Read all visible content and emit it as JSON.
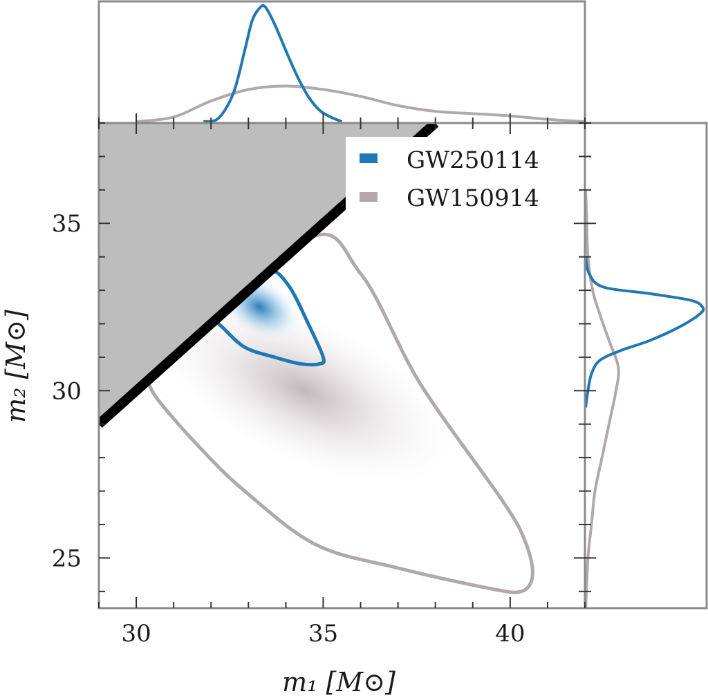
{
  "chart_data": {
    "type": "scatter",
    "subtype": "corner-plot (2D posterior density with marginal histograms)",
    "xlabel": "m₁ [M⊙]",
    "ylabel": "m₂ [M⊙]",
    "xlim": [
      29,
      42
    ],
    "ylim": [
      23.5,
      38
    ],
    "x_ticks": [
      30,
      35,
      40
    ],
    "y_ticks": [
      25,
      30,
      35
    ],
    "grid": false,
    "legend_position": "top-right",
    "excluded_region": {
      "description": "m₂ > m₁ region shaded grey with black boundary line m₂ = m₁",
      "color": "#bdbdbd"
    },
    "series": [
      {
        "name": "GW250114",
        "color": "#1f77b4",
        "contour_points": [
          [
            32.1,
            32.1
          ],
          [
            33.1,
            33.1
          ],
          [
            33.6,
            33.6
          ],
          [
            34.1,
            33.1
          ],
          [
            34.6,
            32.0
          ],
          [
            35.0,
            31.0
          ],
          [
            34.9,
            30.8
          ],
          [
            34.4,
            30.8
          ],
          [
            33.7,
            31.0
          ],
          [
            32.9,
            31.3
          ],
          [
            32.3,
            31.9
          ],
          [
            32.1,
            32.1
          ]
        ],
        "peak": [
          33.3,
          32.5
        ],
        "marginal_m1": [
          [
            31.8,
            0.0
          ],
          [
            32.2,
            0.03
          ],
          [
            32.6,
            0.25
          ],
          [
            32.9,
            0.62
          ],
          [
            33.1,
            0.88
          ],
          [
            33.3,
            0.99
          ],
          [
            33.45,
            1.0
          ],
          [
            33.7,
            0.85
          ],
          [
            34.0,
            0.62
          ],
          [
            34.3,
            0.4
          ],
          [
            34.6,
            0.22
          ],
          [
            34.9,
            0.1
          ],
          [
            35.2,
            0.04
          ],
          [
            35.5,
            0.0
          ]
        ],
        "marginal_m2": [
          [
            29.5,
            0.0
          ],
          [
            30.0,
            0.02
          ],
          [
            30.5,
            0.05
          ],
          [
            30.9,
            0.12
          ],
          [
            31.2,
            0.3
          ],
          [
            31.5,
            0.55
          ],
          [
            31.9,
            0.8
          ],
          [
            32.3,
            0.98
          ],
          [
            32.5,
            1.0
          ],
          [
            32.7,
            0.9
          ],
          [
            32.9,
            0.55
          ],
          [
            33.1,
            0.15
          ],
          [
            33.5,
            0.03
          ],
          [
            34.0,
            0.0
          ]
        ]
      },
      {
        "name": "GW150914",
        "color": "#b0a8ab",
        "contour_points": [
          [
            30.3,
            30.3
          ],
          [
            34.5,
            34.5
          ],
          [
            36.0,
            33.5
          ],
          [
            37.6,
            30.2
          ],
          [
            39.8,
            26.7
          ],
          [
            40.4,
            25.5
          ],
          [
            40.6,
            24.5
          ],
          [
            40.3,
            24.0
          ],
          [
            39.4,
            24.1
          ],
          [
            37.0,
            24.7
          ],
          [
            34.8,
            25.4
          ],
          [
            32.9,
            27.0
          ],
          [
            31.7,
            28.3
          ],
          [
            30.6,
            29.7
          ],
          [
            30.3,
            30.3
          ]
        ],
        "peak": [
          34.5,
          30.0
        ],
        "marginal_m1": [
          [
            30.0,
            0.0
          ],
          [
            31.0,
            0.04
          ],
          [
            32.0,
            0.18
          ],
          [
            33.0,
            0.28
          ],
          [
            34.0,
            0.31
          ],
          [
            35.0,
            0.28
          ],
          [
            36.0,
            0.22
          ],
          [
            37.0,
            0.14
          ],
          [
            38.0,
            0.09
          ],
          [
            39.0,
            0.07
          ],
          [
            40.0,
            0.05
          ],
          [
            41.0,
            0.02
          ],
          [
            42.0,
            0.0
          ]
        ],
        "marginal_m2": [
          [
            23.5,
            0.0
          ],
          [
            25.0,
            0.02
          ],
          [
            26.0,
            0.05
          ],
          [
            27.0,
            0.08
          ],
          [
            28.0,
            0.14
          ],
          [
            29.0,
            0.2
          ],
          [
            30.0,
            0.26
          ],
          [
            30.7,
            0.28
          ],
          [
            31.5,
            0.2
          ],
          [
            32.3,
            0.12
          ],
          [
            33.0,
            0.06
          ],
          [
            34.0,
            0.02
          ],
          [
            35.0,
            0.01
          ],
          [
            36.0,
            0.0
          ]
        ]
      }
    ]
  }
}
